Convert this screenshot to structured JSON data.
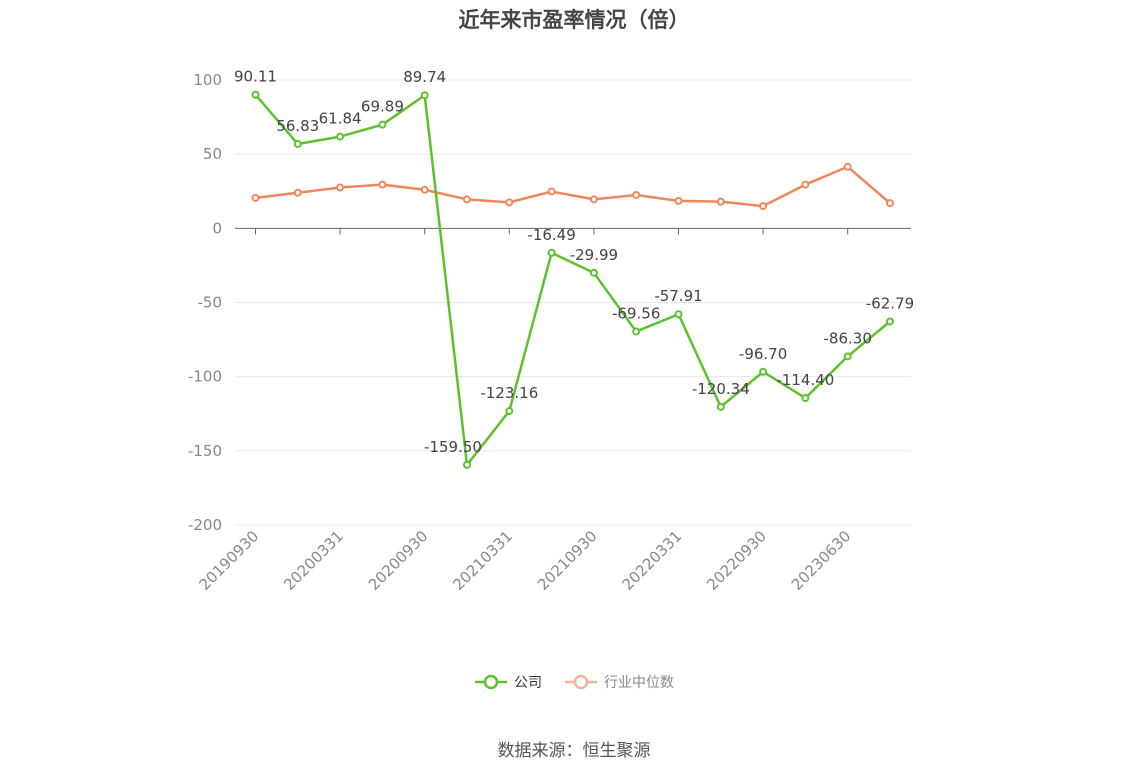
{
  "title": "近年来市盈率情况（倍）",
  "source": "数据来源：恒生聚源",
  "legend": {
    "company": "公司",
    "industry": "行业中位数"
  },
  "colors": {
    "company": "#5cc22c",
    "industry": "#f0875a",
    "industry_legend": "#f5b49a",
    "grid": "#e6e8ef",
    "axis": "#666666",
    "tick_text": "#888888",
    "label_text": "#444444"
  },
  "chart_data": {
    "type": "line",
    "title": "近年来市盈率情况（倍）",
    "xlabel": "",
    "ylabel": "",
    "ylim": [
      -200,
      100
    ],
    "yticks": [
      100,
      50,
      0,
      -50,
      -100,
      -150,
      -200
    ],
    "grid": true,
    "legend_position": "bottom",
    "x_tick_labels": [
      "20190930",
      "20200331",
      "20200930",
      "20210331",
      "20210930",
      "20220331",
      "20220930",
      "20230630"
    ],
    "x_tick_label_indices": [
      0,
      2,
      4,
      6,
      8,
      10,
      12,
      14
    ],
    "point_count": 16,
    "series": [
      {
        "name": "公司",
        "values": [
          90.11,
          56.83,
          61.84,
          69.89,
          89.74,
          -159.5,
          -123.16,
          -16.49,
          -29.99,
          -69.56,
          -57.91,
          -120.34,
          -96.7,
          -114.4,
          -86.3,
          -62.79
        ],
        "labels": [
          "90.11",
          "56.83",
          "61.84",
          "69.89",
          "89.74",
          "-159.50",
          "-123.16",
          "-16.49",
          "-29.99",
          "-69.56",
          "-57.91",
          "-120.34",
          "-96.70",
          "-114.40",
          "-86.30",
          "-62.79"
        ]
      },
      {
        "name": "行业中位数",
        "values": [
          20.5,
          24.0,
          27.5,
          29.5,
          26.0,
          19.5,
          17.5,
          24.8,
          19.5,
          22.5,
          18.5,
          18.0,
          15.0,
          29.5,
          41.5,
          17.0
        ]
      }
    ]
  }
}
